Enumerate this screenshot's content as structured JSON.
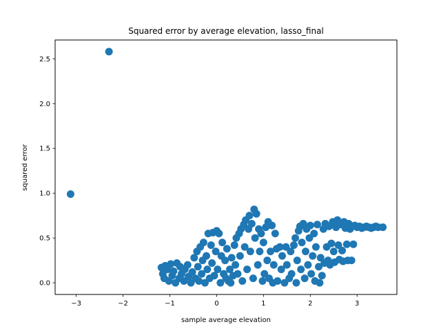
{
  "chart_data": {
    "type": "scatter",
    "title": "Squared error by average elevation, lasso_final",
    "xlabel": "sample average elevation",
    "ylabel": "squared error",
    "xlim": [
      -3.45,
      3.85
    ],
    "ylim": [
      -0.13,
      2.71
    ],
    "xticks": [
      -3,
      -2,
      -1,
      0,
      1,
      2,
      3
    ],
    "yticks": [
      0.0,
      0.5,
      1.0,
      1.5,
      2.0,
      2.5
    ],
    "xtick_labels": [
      "−3",
      "−2",
      "−1",
      "0",
      "1",
      "2",
      "3"
    ],
    "ytick_labels": [
      "0.0",
      "0.5",
      "1.0",
      "1.5",
      "2.0",
      "2.5"
    ],
    "grid": false,
    "color": "#1f77b4",
    "points": [
      {
        "x": -2.3,
        "y": 2.58
      },
      {
        "x": -3.12,
        "y": 0.99
      },
      {
        "x": -1.18,
        "y": 0.17
      },
      {
        "x": -1.15,
        "y": 0.1
      },
      {
        "x": -1.12,
        "y": 0.05
      },
      {
        "x": -1.1,
        "y": 0.19
      },
      {
        "x": -1.05,
        "y": 0.15
      },
      {
        "x": -1.02,
        "y": 0.02
      },
      {
        "x": -0.98,
        "y": 0.21
      },
      {
        "x": -0.95,
        "y": 0.08
      },
      {
        "x": -0.92,
        "y": 0.13
      },
      {
        "x": -0.88,
        "y": 0.0
      },
      {
        "x": -0.85,
        "y": 0.22
      },
      {
        "x": -0.8,
        "y": 0.05
      },
      {
        "x": -0.78,
        "y": 0.18
      },
      {
        "x": -0.75,
        "y": 0.1
      },
      {
        "x": -0.7,
        "y": 0.02
      },
      {
        "x": -0.68,
        "y": 0.15
      },
      {
        "x": -0.62,
        "y": 0.2
      },
      {
        "x": -0.6,
        "y": 0.07
      },
      {
        "x": -0.55,
        "y": 0.0
      },
      {
        "x": -0.52,
        "y": 0.12
      },
      {
        "x": -0.48,
        "y": 0.28
      },
      {
        "x": -0.45,
        "y": 0.05
      },
      {
        "x": -0.42,
        "y": 0.35
      },
      {
        "x": -0.4,
        "y": 0.18
      },
      {
        "x": -0.38,
        "y": 0.02
      },
      {
        "x": -0.35,
        "y": 0.4
      },
      {
        "x": -0.32,
        "y": 0.1
      },
      {
        "x": -0.3,
        "y": 0.25
      },
      {
        "x": -0.28,
        "y": 0.45
      },
      {
        "x": -0.25,
        "y": 0.0
      },
      {
        "x": -0.22,
        "y": 0.3
      },
      {
        "x": -0.2,
        "y": 0.15
      },
      {
        "x": -0.18,
        "y": 0.55
      },
      {
        "x": -0.15,
        "y": 0.05
      },
      {
        "x": -0.12,
        "y": 0.42
      },
      {
        "x": -0.1,
        "y": 0.22
      },
      {
        "x": -0.08,
        "y": 0.56
      },
      {
        "x": -0.05,
        "y": 0.08
      },
      {
        "x": -0.02,
        "y": 0.35
      },
      {
        "x": 0.0,
        "y": 0.58
      },
      {
        "x": 0.02,
        "y": 0.15
      },
      {
        "x": 0.05,
        "y": 0.55
      },
      {
        "x": 0.08,
        "y": 0.0
      },
      {
        "x": 0.1,
        "y": 0.3
      },
      {
        "x": 0.12,
        "y": 0.45
      },
      {
        "x": 0.15,
        "y": 0.1
      },
      {
        "x": 0.18,
        "y": 0.25
      },
      {
        "x": 0.2,
        "y": 0.05
      },
      {
        "x": 0.22,
        "y": 0.38
      },
      {
        "x": 0.25,
        "y": 0.02
      },
      {
        "x": 0.28,
        "y": 0.15
      },
      {
        "x": 0.3,
        "y": 0.0
      },
      {
        "x": 0.32,
        "y": 0.28
      },
      {
        "x": 0.35,
        "y": 0.08
      },
      {
        "x": 0.38,
        "y": 0.42
      },
      {
        "x": 0.4,
        "y": 0.2
      },
      {
        "x": 0.42,
        "y": 0.5
      },
      {
        "x": 0.45,
        "y": 0.1
      },
      {
        "x": 0.48,
        "y": 0.55
      },
      {
        "x": 0.5,
        "y": 0.3
      },
      {
        "x": 0.52,
        "y": 0.6
      },
      {
        "x": 0.55,
        "y": 0.02
      },
      {
        "x": 0.58,
        "y": 0.65
      },
      {
        "x": 0.6,
        "y": 0.4
      },
      {
        "x": 0.62,
        "y": 0.7
      },
      {
        "x": 0.65,
        "y": 0.15
      },
      {
        "x": 0.68,
        "y": 0.6
      },
      {
        "x": 0.7,
        "y": 0.75
      },
      {
        "x": 0.72,
        "y": 0.35
      },
      {
        "x": 0.75,
        "y": 0.66
      },
      {
        "x": 0.78,
        "y": 0.05
      },
      {
        "x": 0.8,
        "y": 0.82
      },
      {
        "x": 0.82,
        "y": 0.5
      },
      {
        "x": 0.85,
        "y": 0.77
      },
      {
        "x": 0.88,
        "y": 0.2
      },
      {
        "x": 0.9,
        "y": 0.6
      },
      {
        "x": 0.92,
        "y": 0.35
      },
      {
        "x": 0.95,
        "y": 0.55
      },
      {
        "x": 0.98,
        "y": 0.02
      },
      {
        "x": 1.0,
        "y": 0.45
      },
      {
        "x": 1.02,
        "y": 0.1
      },
      {
        "x": 1.05,
        "y": 0.62
      },
      {
        "x": 1.08,
        "y": 0.25
      },
      {
        "x": 1.1,
        "y": 0.68
      },
      {
        "x": 1.12,
        "y": 0.05
      },
      {
        "x": 1.15,
        "y": 0.35
      },
      {
        "x": 1.18,
        "y": 0.64
      },
      {
        "x": 1.2,
        "y": 0.0
      },
      {
        "x": 1.22,
        "y": 0.2
      },
      {
        "x": 1.25,
        "y": 0.55
      },
      {
        "x": 1.28,
        "y": 0.38
      },
      {
        "x": 1.3,
        "y": 0.02
      },
      {
        "x": 1.35,
        "y": 0.4
      },
      {
        "x": 1.38,
        "y": 0.15
      },
      {
        "x": 1.4,
        "y": 0.3
      },
      {
        "x": 1.45,
        "y": 0.0
      },
      {
        "x": 1.48,
        "y": 0.4
      },
      {
        "x": 1.5,
        "y": 0.2
      },
      {
        "x": 1.55,
        "y": 0.05
      },
      {
        "x": 1.58,
        "y": 0.35
      },
      {
        "x": 1.6,
        "y": 0.1
      },
      {
        "x": 1.65,
        "y": 0.42
      },
      {
        "x": 1.68,
        "y": 0.5
      },
      {
        "x": 1.7,
        "y": 0.0
      },
      {
        "x": 1.72,
        "y": 0.25
      },
      {
        "x": 1.75,
        "y": 0.58
      },
      {
        "x": 1.78,
        "y": 0.63
      },
      {
        "x": 1.8,
        "y": 0.15
      },
      {
        "x": 1.82,
        "y": 0.45
      },
      {
        "x": 1.85,
        "y": 0.66
      },
      {
        "x": 1.88,
        "y": 0.05
      },
      {
        "x": 1.9,
        "y": 0.35
      },
      {
        "x": 1.92,
        "y": 0.6
      },
      {
        "x": 1.95,
        "y": 0.2
      },
      {
        "x": 1.98,
        "y": 0.5
      },
      {
        "x": 2.0,
        "y": 0.64
      },
      {
        "x": 2.02,
        "y": 0.1
      },
      {
        "x": 2.05,
        "y": 0.3
      },
      {
        "x": 2.08,
        "y": 0.55
      },
      {
        "x": 2.1,
        "y": 0.02
      },
      {
        "x": 2.12,
        "y": 0.4
      },
      {
        "x": 2.15,
        "y": 0.65
      },
      {
        "x": 2.18,
        "y": 0.18
      },
      {
        "x": 2.2,
        "y": 0.0
      },
      {
        "x": 2.22,
        "y": 0.28
      },
      {
        "x": 2.25,
        "y": 0.08
      },
      {
        "x": 2.28,
        "y": 0.6
      },
      {
        "x": 2.3,
        "y": 0.22
      },
      {
        "x": 2.32,
        "y": 0.66
      },
      {
        "x": 2.35,
        "y": 0.4
      },
      {
        "x": 2.38,
        "y": 0.25
      },
      {
        "x": 2.4,
        "y": 0.63
      },
      {
        "x": 2.42,
        "y": 0.2
      },
      {
        "x": 2.45,
        "y": 0.44
      },
      {
        "x": 2.48,
        "y": 0.68
      },
      {
        "x": 2.5,
        "y": 0.35
      },
      {
        "x": 2.52,
        "y": 0.23
      },
      {
        "x": 2.55,
        "y": 0.62
      },
      {
        "x": 2.58,
        "y": 0.7
      },
      {
        "x": 2.6,
        "y": 0.42
      },
      {
        "x": 2.62,
        "y": 0.26
      },
      {
        "x": 2.65,
        "y": 0.65
      },
      {
        "x": 2.68,
        "y": 0.36
      },
      {
        "x": 2.7,
        "y": 0.24
      },
      {
        "x": 2.72,
        "y": 0.68
      },
      {
        "x": 2.75,
        "y": 0.61
      },
      {
        "x": 2.78,
        "y": 0.43
      },
      {
        "x": 2.8,
        "y": 0.25
      },
      {
        "x": 2.82,
        "y": 0.66
      },
      {
        "x": 2.85,
        "y": 0.6
      },
      {
        "x": 2.88,
        "y": 0.25
      },
      {
        "x": 2.9,
        "y": 0.63
      },
      {
        "x": 2.92,
        "y": 0.43
      },
      {
        "x": 2.95,
        "y": 0.64
      },
      {
        "x": 3.0,
        "y": 0.62
      },
      {
        "x": 3.05,
        "y": 0.63
      },
      {
        "x": 3.1,
        "y": 0.61
      },
      {
        "x": 3.15,
        "y": 0.62
      },
      {
        "x": 3.2,
        "y": 0.63
      },
      {
        "x": 3.25,
        "y": 0.62
      },
      {
        "x": 3.3,
        "y": 0.61
      },
      {
        "x": 3.35,
        "y": 0.62
      },
      {
        "x": 3.4,
        "y": 0.63
      },
      {
        "x": 3.45,
        "y": 0.62
      },
      {
        "x": 3.55,
        "y": 0.62
      }
    ]
  }
}
